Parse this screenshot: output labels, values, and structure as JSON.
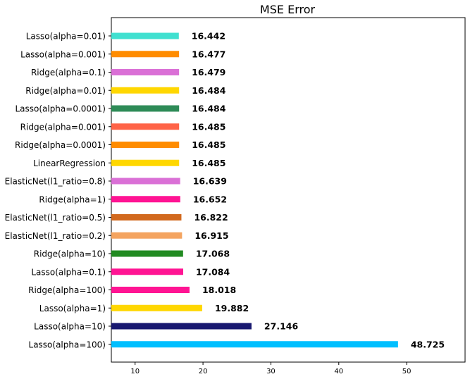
{
  "chart_data": {
    "type": "bar",
    "orientation": "horizontal",
    "title": "MSE Error",
    "xlabel": "",
    "ylabel": "",
    "xlim": [
      6.5,
      58.6
    ],
    "xticks": [
      10,
      20,
      30,
      40,
      50
    ],
    "grid": false,
    "categories": [
      "Lasso(alpha=0.01)",
      "Lasso(alpha=0.001)",
      "Ridge(alpha=0.1)",
      "Ridge(alpha=0.01)",
      "Lasso(alpha=0.0001)",
      "Ridge(alpha=0.001)",
      "Ridge(alpha=0.0001)",
      "LinearRegression",
      "ElasticNet(l1_ratio=0.8)",
      "Ridge(alpha=1)",
      "ElasticNet(l1_ratio=0.5)",
      "ElasticNet(l1_ratio=0.2)",
      "Ridge(alpha=10)",
      "Lasso(alpha=0.1)",
      "Ridge(alpha=100)",
      "Lasso(alpha=1)",
      "Lasso(alpha=10)",
      "Lasso(alpha=100)"
    ],
    "values": [
      16.442,
      16.477,
      16.479,
      16.484,
      16.484,
      16.485,
      16.485,
      16.485,
      16.639,
      16.652,
      16.822,
      16.915,
      17.068,
      17.084,
      18.018,
      19.882,
      27.146,
      48.725
    ],
    "value_labels": [
      "16.442",
      "16.477",
      "16.479",
      "16.484",
      "16.484",
      "16.485",
      "16.485",
      "16.485",
      "16.639",
      "16.652",
      "16.822",
      "16.915",
      "17.068",
      "17.084",
      "18.018",
      "19.882",
      "27.146",
      "48.725"
    ],
    "colors": [
      "#40E0D0",
      "#FF8C00",
      "#DA70D6",
      "#FFD700",
      "#2E8B57",
      "#FF6347",
      "#FF8C00",
      "#FFD700",
      "#DA70D6",
      "#FF1493",
      "#D2691E",
      "#F4A460",
      "#228B22",
      "#FF1493",
      "#FF1493",
      "#FFD700",
      "#191970",
      "#00BFFF"
    ]
  }
}
